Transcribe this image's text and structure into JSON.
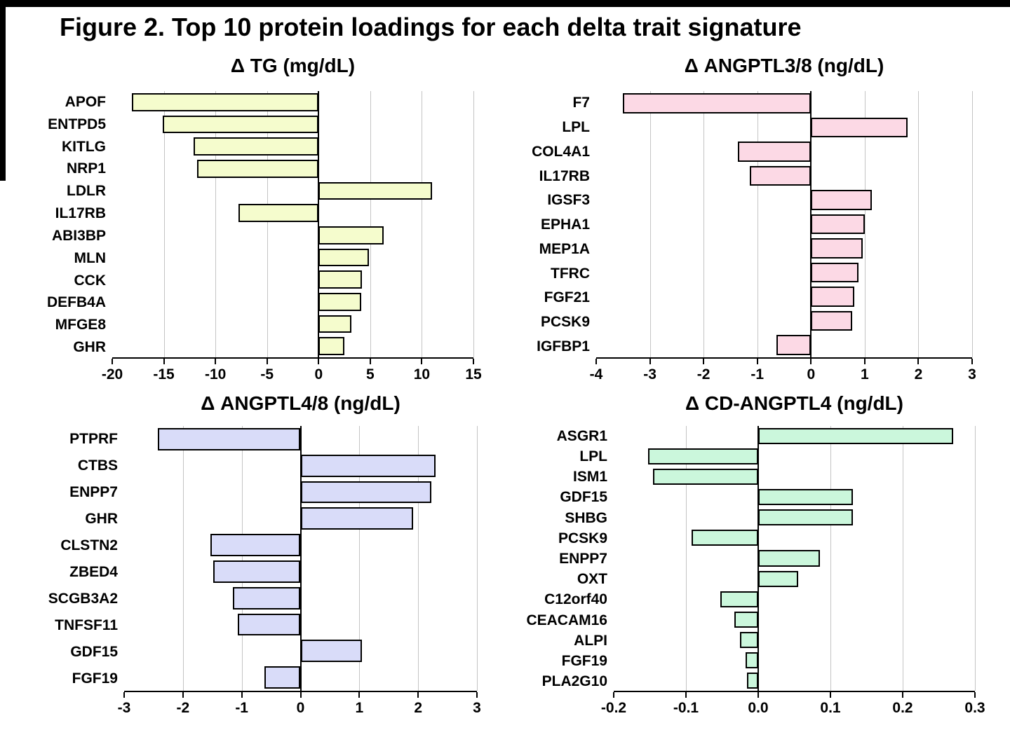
{
  "figure_title": "Figure 2. Top 10 protein loadings for each delta trait signature",
  "chart_data": [
    {
      "type": "bar",
      "title": "Δ TG (mg/dL)",
      "bar_color": "#F5FCCD",
      "bar_border_color": "#000000",
      "gridline_color": "#C4C4C4",
      "orientation": "horizontal",
      "categories": [
        "APOF",
        "ENTPD5",
        "KITLG",
        "NRP1",
        "LDLR",
        "IL17RB",
        "ABI3BP",
        "MLN",
        "CCK",
        "DEFB4A",
        "MFGE8",
        "GHR"
      ],
      "values": [
        -18.1,
        -15.1,
        -12.1,
        -11.8,
        11.0,
        -7.8,
        6.3,
        4.9,
        4.2,
        4.1,
        3.2,
        2.5
      ],
      "axis": {
        "min": -20,
        "max": 15,
        "ticks": [
          -20,
          -15,
          -10,
          -5,
          0,
          5,
          10,
          15
        ],
        "tick_labels": [
          "-20",
          "-15",
          "-10",
          "-5",
          "0",
          "5",
          "10",
          "15"
        ]
      }
    },
    {
      "type": "bar",
      "title": "Δ ANGPTL3/8 (ng/dL)",
      "bar_color": "#FCD9E5",
      "bar_border_color": "#000000",
      "gridline_color": "#C4C4C4",
      "orientation": "horizontal",
      "categories": [
        "F7",
        "LPL",
        "COL4A1",
        "IL17RB",
        "IGSF3",
        "EPHA1",
        "MEP1A",
        "TFRC",
        "FGF21",
        "PCSK9",
        "IGFBP1"
      ],
      "values": [
        -3.5,
        1.8,
        -1.36,
        -1.14,
        1.13,
        1.0,
        0.96,
        0.89,
        0.81,
        0.77,
        -0.64
      ],
      "axis": {
        "min": -4,
        "max": 3,
        "ticks": [
          -4,
          -3,
          -2,
          -1,
          0,
          1,
          2,
          3
        ],
        "tick_labels": [
          "-4",
          "-3",
          "-2",
          "-1",
          "0",
          "1",
          "2",
          "3"
        ]
      }
    },
    {
      "type": "bar",
      "title": "Δ ANGPTL4/8 (ng/dL)",
      "bar_color": "#D9DCF9",
      "bar_border_color": "#000000",
      "gridline_color": "#C4C4C4",
      "orientation": "horizontal",
      "categories": [
        "PTPRF",
        "CTBS",
        "ENPP7",
        "GHR",
        "CLSTN2",
        "ZBED4",
        "SCGB3A2",
        "TNFSF11",
        "GDF15",
        "FGF19"
      ],
      "values": [
        -2.43,
        2.3,
        2.23,
        1.91,
        -1.53,
        -1.49,
        -1.15,
        -1.07,
        1.04,
        -0.62
      ],
      "axis": {
        "min": -3,
        "max": 3,
        "ticks": [
          -3,
          -2,
          -1,
          0,
          1,
          2,
          3
        ],
        "tick_labels": [
          "-3",
          "-2",
          "-1",
          "0",
          "1",
          "2",
          "3"
        ]
      }
    },
    {
      "type": "bar",
      "title": "Δ CD-ANGPTL4 (ng/dL)",
      "bar_color": "#CBF7DC",
      "bar_border_color": "#000000",
      "gridline_color": "#C4C4C4",
      "orientation": "horizontal",
      "categories": [
        "ASGR1",
        "LPL",
        "ISM1",
        "GDF15",
        "SHBG",
        "PCSK9",
        "ENPP7",
        "OXT",
        "C12orf40",
        "CEACAM16",
        "ALPI",
        "FGF19",
        "PLA2G10"
      ],
      "values": [
        0.27,
        -0.152,
        -0.146,
        0.131,
        0.131,
        -0.092,
        0.085,
        0.055,
        -0.052,
        -0.033,
        -0.025,
        -0.017,
        -0.016
      ],
      "axis": {
        "min": -0.2,
        "max": 0.3,
        "ticks": [
          -0.2,
          -0.1,
          0,
          0.1,
          0.2,
          0.3
        ],
        "tick_labels": [
          "-0.2",
          "-0.1",
          "0.0",
          "0.1",
          "0.2",
          "0.3"
        ]
      }
    }
  ]
}
